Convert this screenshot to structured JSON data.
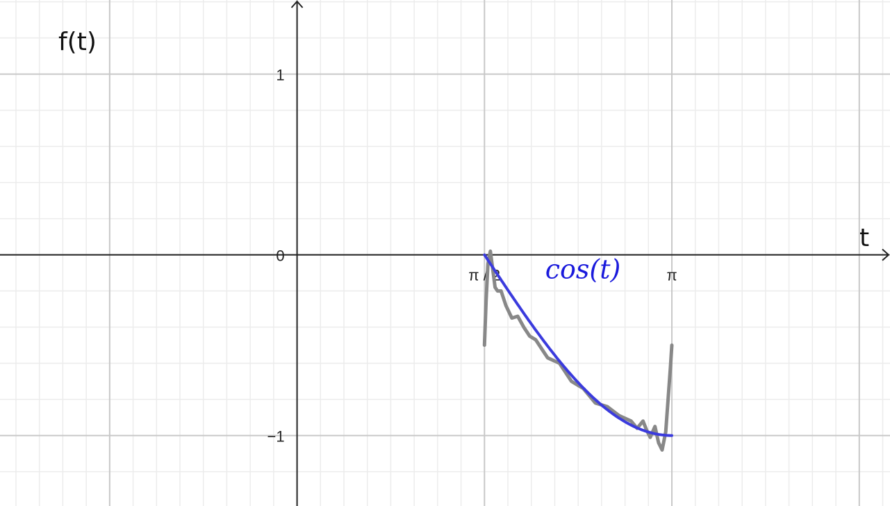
{
  "chart_data": {
    "type": "line",
    "title": "",
    "xlabel": "t",
    "ylabel": "f(t)",
    "xlim": [
      -2.49,
      4.97
    ],
    "ylim": [
      -1.39,
      1.41
    ],
    "grid": true,
    "x_ticks": [
      {
        "value": 1.5708,
        "label": "π / 2"
      },
      {
        "value": 3.14159,
        "label": "π"
      }
    ],
    "y_ticks": [
      {
        "value": 1,
        "label": "1"
      },
      {
        "value": 0,
        "label": "0"
      },
      {
        "value": -1,
        "label": "−1"
      }
    ],
    "series": [
      {
        "name": "cos(t)",
        "color": "#3b3bdd",
        "role": "exact",
        "x": [
          1.5708,
          1.7671,
          1.9635,
          2.1598,
          2.3562,
          2.5525,
          2.7489,
          2.9452,
          3.1416
        ],
        "y": [
          0.0,
          -0.1951,
          -0.3827,
          -0.5556,
          -0.7071,
          -0.8315,
          -0.9239,
          -0.9808,
          -1.0
        ]
      },
      {
        "name": "",
        "color": "#888888",
        "role": "fourier-approximation",
        "x": [
          1.5708,
          1.585,
          1.6,
          1.62,
          1.64,
          1.66,
          1.68,
          1.71,
          1.75,
          1.8,
          1.85,
          1.9,
          1.95,
          2.0,
          2.1,
          2.2,
          2.3,
          2.4,
          2.5,
          2.6,
          2.7,
          2.8,
          2.85,
          2.9,
          2.93,
          2.96,
          3.0,
          3.03,
          3.06,
          3.09,
          3.11,
          3.13,
          3.1416
        ],
        "y": [
          -0.5,
          -0.25,
          -0.05,
          0.02,
          -0.08,
          -0.18,
          -0.2,
          -0.2,
          -0.28,
          -0.35,
          -0.34,
          -0.4,
          -0.45,
          -0.47,
          -0.57,
          -0.6,
          -0.7,
          -0.74,
          -0.82,
          -0.84,
          -0.89,
          -0.92,
          -0.96,
          -0.92,
          -0.97,
          -1.01,
          -0.95,
          -1.04,
          -1.08,
          -0.98,
          -0.8,
          -0.62,
          -0.5
        ]
      }
    ],
    "annotations": [
      {
        "text": "cos(t)",
        "x": 2.08,
        "y": -0.13,
        "color": "#1a1adc"
      }
    ]
  }
}
